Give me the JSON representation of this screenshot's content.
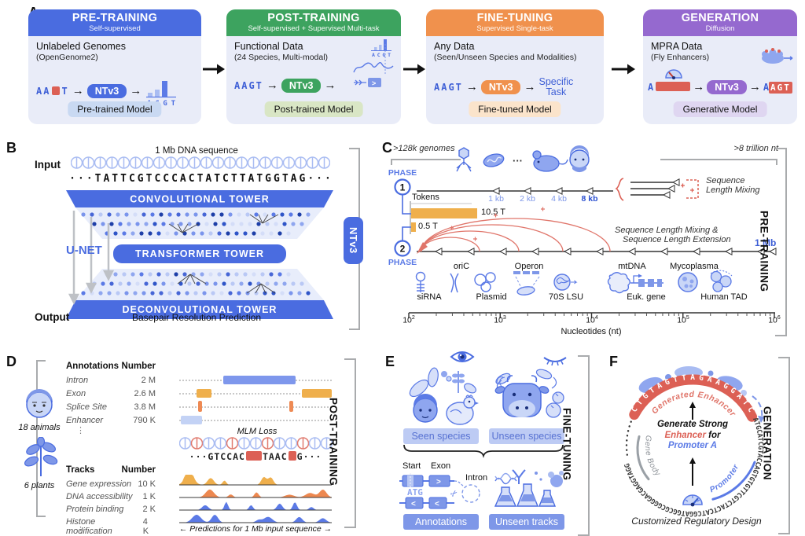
{
  "colors": {
    "blue": "#4A6CE0",
    "green": "#3DA35F",
    "orange": "#F0914D",
    "purple": "#9569CF",
    "red": "#DC6055",
    "gold": "#EFAF4C",
    "card_bg": "#E9ECF8",
    "icon_blue": "#5B7AE6",
    "bracket_gray": "#A9ABAD"
  },
  "glyphs": {
    "arrow_right": "→",
    "scissors": "✂",
    "vdots": "⋮",
    "dots": "···"
  },
  "a": {
    "label": "A",
    "stages": [
      {
        "title": "PRE-TRAINING",
        "subtitle": "Self-supervised",
        "heading": "Unlabeled Genomes",
        "subheading": "(OpenGenome2)",
        "seq_a": "AA",
        "seq_b": "T",
        "model": "NTv3",
        "logits": "ACGT",
        "footer": "Pre-trained Model"
      },
      {
        "title": "POST-TRAINING",
        "subtitle": "Self-supervised + Supervised Multi-task",
        "heading": "Functional Data",
        "subheading": "(24 Species, Multi-modal)",
        "seq": "AAGT",
        "model": "NTv3",
        "logits": "ACGT",
        "footer": "Post-trained Model"
      },
      {
        "title": "FINE-TUNING",
        "subtitle": "Supervised Single-task",
        "heading": "Any Data",
        "subheading": "(Seen/Unseen Species and Modalities)",
        "seq": "AAGT",
        "model": "NTv3",
        "result1": "Specific",
        "result2": "Task",
        "footer": "Fine-tuned Model"
      },
      {
        "title": "GENERATION",
        "subtitle": "Diffusion",
        "heading": "MPRA Data",
        "subheading": "(Fly Enhancers)",
        "seq_a": "A",
        "model": "NTv3",
        "out_a": "A",
        "out_b": "AGT",
        "footer": "Generative Model"
      }
    ]
  },
  "b": {
    "label": "B",
    "input": "Input",
    "output": "Output",
    "seq_title": "1 Mb DNA sequence",
    "sequence": "···TATTCGTCCCACTATCTTATGGTAG···",
    "conv": "CONVOLUTIONAL TOWER",
    "transformer": "TRANSFORMER TOWER",
    "deconv": "DECONVOLUTIONAL TOWER",
    "unet": "U-NET",
    "model": "NTv3",
    "output_text": "Basepair Resolution Prediction"
  },
  "c": {
    "label": "C",
    "left_note": ">128k genomes",
    "right_note": ">8 trillion nt",
    "phase": "PHASE",
    "phase1": "1",
    "phase2": "2",
    "tokens": "Tokens",
    "tokens1": "10.5 T",
    "tokens2": "0.5 T",
    "kb": [
      "1 kb",
      "2 kb",
      "4 kb",
      "8 kb"
    ],
    "mix1": "Sequence",
    "mix2": "Length Mixing",
    "ext1": "Sequence Length Mixing &",
    "ext2": "Sequence Length Extension",
    "mb": "1 Mb",
    "items": [
      {
        "name": "siRNA"
      },
      {
        "name": "oriC"
      },
      {
        "name": "Plasmid"
      },
      {
        "name": "Operon"
      },
      {
        "name": "70S LSU"
      },
      {
        "name": "mtDNA"
      },
      {
        "name": "Euk. gene"
      },
      {
        "name": "Mycoplasma"
      },
      {
        "name": "Human TAD"
      }
    ],
    "axis": [
      {
        "b": "10",
        "e": "2"
      },
      {
        "b": "10",
        "e": "3"
      },
      {
        "b": "10",
        "e": "4"
      },
      {
        "b": "10",
        "e": "5"
      },
      {
        "b": "10",
        "e": "6"
      }
    ],
    "axis_label": "Nucleotides (nt)",
    "side": "PRE-TRAINING"
  },
  "d": {
    "label": "D",
    "animals": "18 animals",
    "plants": "6 plants",
    "ann_h1": "Annotations",
    "ann_h2": "Number",
    "annotations": [
      {
        "name": "Intron",
        "value": "2 M"
      },
      {
        "name": "Exon",
        "value": "2.6 M"
      },
      {
        "name": "Splice Site",
        "value": "3.8 M"
      },
      {
        "name": "Enhancer",
        "value": "790 K"
      }
    ],
    "mlm": "MLM Loss",
    "mlm_pre": "···GTCCAC",
    "mlm_mid": "TAAC",
    "mlm_post": "G···",
    "tr_h1": "Tracks",
    "tr_h2": "Number",
    "tracks": [
      {
        "name": "Gene expression",
        "value": "10 K"
      },
      {
        "name": "DNA accessibility",
        "value": "1 K"
      },
      {
        "name": "Protein binding",
        "value": "2 K"
      },
      {
        "name": "Histone modification",
        "value": "4 K"
      }
    ],
    "pred": "← Predictions for 1 Mb input sequence →",
    "side": "POST-TRAINING"
  },
  "e": {
    "label": "E",
    "seen": "Seen species",
    "unseen": "Unseen species",
    "start": "Start",
    "exon": "Exon",
    "intron": "Intron",
    "atg": "ATG",
    "annotations": "Annotations",
    "unseen_tracks": "Unseen tracks",
    "side": "FINE-TUNING"
  },
  "f": {
    "label": "F",
    "enhancer_seq": "CTGTAGTTAGAAGGATC",
    "ring_seq": "ATGCATCGTACCAGTGTGTTCGTCTACTCATCGGATGGCGCGGGGACGAGGTAGG",
    "generated": "Generated Enhancer",
    "center1": "Generate Strong",
    "center2a": "Enhancer",
    "center2b": " for",
    "center3": "Promoter A",
    "gene_body": "Gene Body",
    "promoter": "Promoter A",
    "caption": "Customized Regulatory Design",
    "side": "GENERATION"
  }
}
